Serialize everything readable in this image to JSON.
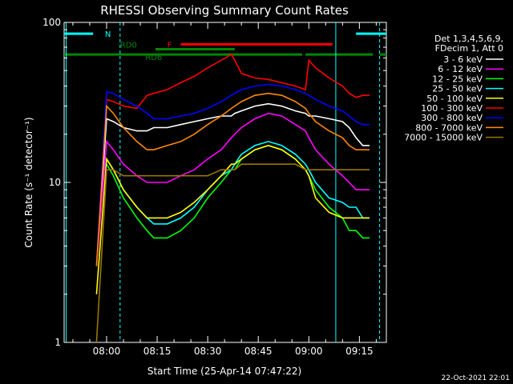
{
  "chart_data": {
    "type": "line",
    "title": "RHESSI Observing Summary Count Rates",
    "xlabel": "Start Time (25-Apr-14 07:47:22)",
    "ylabel": "Count Rate (s⁻¹ detector⁻¹)",
    "yscale": "log",
    "ylim": [
      1,
      100
    ],
    "xlim_min": [
      -12.6,
      83
    ],
    "x_unit": "minutes after 08:00",
    "y_ticks": [
      {
        "value": 1,
        "label": "1"
      },
      {
        "value": 10,
        "label": "10"
      },
      {
        "value": 100,
        "label": "100"
      }
    ],
    "x_ticks": [
      {
        "value": 0,
        "label": "08:00"
      },
      {
        "value": 15,
        "label": "08:15"
      },
      {
        "value": 30,
        "label": "08:30"
      },
      {
        "value": 45,
        "label": "08:45"
      },
      {
        "value": 60,
        "label": "09:00"
      },
      {
        "value": 75,
        "label": "09:15"
      }
    ],
    "legend_header": [
      "Det 1,3,4,5,6,9,",
      "FDecim 1, Att 0"
    ],
    "legend_position": "right",
    "grid": false,
    "x": [
      -10,
      -3,
      0,
      2,
      5,
      9,
      12,
      14,
      18,
      22,
      26,
      30,
      34,
      37,
      38,
      40,
      44,
      48,
      52,
      56,
      59,
      60,
      62,
      66,
      70,
      72,
      74,
      76,
      78
    ],
    "series": [
      {
        "name": "3 - 6 keV",
        "color": "#ffffff",
        "values": [
          null,
          3,
          25,
          24,
          22,
          21,
          21,
          22,
          22,
          23,
          24,
          25,
          26,
          26,
          27,
          28,
          30,
          31,
          30,
          28,
          27,
          26,
          26,
          25,
          24,
          22,
          19,
          17,
          17
        ]
      },
      {
        "name": "6 - 12 keV",
        "color": "#ff00ff",
        "values": [
          null,
          3,
          18,
          16,
          13,
          11,
          10,
          10,
          10,
          11,
          12,
          14,
          16,
          19,
          20,
          22,
          25,
          27,
          26,
          23,
          21,
          19,
          16,
          13,
          11,
          10,
          9,
          9,
          9
        ]
      },
      {
        "name": "12 - 25 keV",
        "color": "#00ff00",
        "values": [
          null,
          null,
          13,
          11,
          8,
          6,
          5,
          4.5,
          4.5,
          5,
          6,
          8,
          10,
          12,
          12,
          14,
          16,
          17,
          16,
          14,
          12,
          11,
          9,
          7,
          6,
          5,
          5,
          4.5,
          4.5
        ]
      },
      {
        "name": "25 - 50 keV",
        "color": "#00ffff",
        "values": [
          null,
          null,
          14,
          12,
          9,
          7,
          6,
          5.5,
          5.5,
          6,
          7,
          9,
          11,
          12,
          13,
          15,
          17,
          18,
          17,
          15,
          13,
          12,
          10,
          8,
          7.5,
          7,
          7,
          6,
          6
        ]
      },
      {
        "name": "50 - 100 keV",
        "color": "#ffff00",
        "values": [
          null,
          2,
          14,
          12,
          9,
          7,
          6,
          6,
          6,
          6.5,
          7.5,
          9,
          11,
          13,
          13,
          14,
          16,
          17,
          16,
          14,
          12,
          11,
          8,
          6.5,
          6,
          6,
          6,
          6,
          6
        ]
      },
      {
        "name": "100 - 300 keV",
        "color": "#ff0000",
        "values": [
          null,
          3,
          33,
          32,
          30,
          29,
          35,
          36,
          38,
          42,
          46,
          52,
          58,
          63,
          58,
          48,
          45,
          44,
          42,
          40,
          38,
          58,
          52,
          45,
          40,
          36,
          34,
          35,
          35
        ]
      },
      {
        "name": "300 - 800 keV",
        "color": "#0000ff",
        "values": [
          null,
          3,
          37,
          36,
          33,
          30,
          27,
          25,
          25,
          26,
          27,
          29,
          32,
          35,
          36,
          38,
          40,
          41,
          40,
          38,
          36,
          35,
          33,
          30,
          28,
          26,
          24,
          23,
          23
        ]
      },
      {
        "name": "800 - 7000 keV",
        "color": "#ff8800",
        "values": [
          null,
          3,
          30,
          27,
          22,
          18,
          16,
          16,
          17,
          18,
          20,
          23,
          26,
          29,
          30,
          32,
          35,
          36,
          35,
          32,
          29,
          27,
          24,
          21,
          19,
          17,
          16,
          16,
          16
        ]
      },
      {
        "name": "7000 - 15000 keV",
        "color": "#997700",
        "values": [
          null,
          1,
          12,
          12,
          11,
          11,
          11,
          11,
          11,
          11,
          11,
          11,
          12,
          12,
          12,
          13,
          13,
          13,
          13,
          13,
          12,
          12,
          12,
          12,
          12,
          12,
          12,
          12,
          12
        ]
      }
    ],
    "state_bars": [
      {
        "label": "N",
        "color": "#00ffff",
        "level": 85,
        "segments": [
          [
            -12.6,
            -4
          ],
          [
            74,
            83
          ]
        ]
      },
      {
        "label": "F",
        "color": "#ff0000",
        "level": 73,
        "segments": [
          [
            22,
            67
          ]
        ]
      },
      {
        "label": "RD0",
        "color": "#008800",
        "level": 68,
        "segments": [
          [
            14.5,
            38
          ]
        ]
      },
      {
        "label": "RD6",
        "color": "#008800",
        "level": 63,
        "segments": [
          [
            -12.6,
            58
          ],
          [
            59,
            79
          ],
          [
            81,
            83
          ]
        ]
      }
    ],
    "markers": [
      {
        "kind": "solid",
        "color": "#00ffff",
        "x": -12
      },
      {
        "kind": "dashed",
        "color": "#00ffff",
        "x": 4
      },
      {
        "kind": "solid",
        "color": "#00ffff",
        "x": 68
      },
      {
        "kind": "dashed",
        "color": "#00ffff",
        "x": 81
      }
    ]
  },
  "footer": {
    "timestamp": "22-Oct-2021 22:01"
  }
}
